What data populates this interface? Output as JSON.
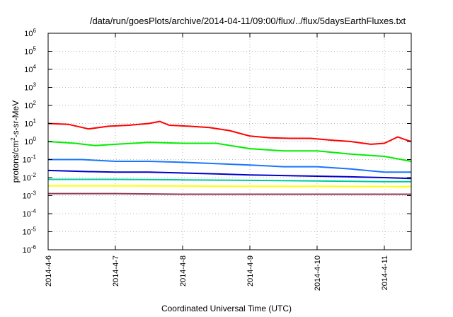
{
  "chart_data": {
    "type": "line",
    "title": "/data/run/goesPlots/archive/2014-04-11/09:00/flux/../flux/5daysEarthFluxes.txt",
    "xlabel": "Coordinated Universal Time (UTC)",
    "ylabel": {
      "prefix": "protons/cm",
      "sup": "2",
      "suffix": "-s-sr-MeV"
    },
    "yscale": "log",
    "ylim_exp": [
      -6,
      6
    ],
    "y_ticks": [
      {
        "exp": -6,
        "base": "10",
        "sup": "-6"
      },
      {
        "exp": -5,
        "base": "10",
        "sup": "-5"
      },
      {
        "exp": -4,
        "base": "10",
        "sup": "-4"
      },
      {
        "exp": -3,
        "base": "10",
        "sup": "-3"
      },
      {
        "exp": -2,
        "base": "10",
        "sup": "-2"
      },
      {
        "exp": -1,
        "base": "10",
        "sup": "-1"
      },
      {
        "exp": 0,
        "base": "10",
        "sup": "0"
      },
      {
        "exp": 1,
        "base": "10",
        "sup": "1"
      },
      {
        "exp": 2,
        "base": "10",
        "sup": "2"
      },
      {
        "exp": 3,
        "base": "10",
        "sup": "3"
      },
      {
        "exp": 4,
        "base": "10",
        "sup": "4"
      },
      {
        "exp": 5,
        "base": "10",
        "sup": "5"
      },
      {
        "exp": 6,
        "base": "10",
        "sup": "6"
      }
    ],
    "x_ticks": [
      "2014-4-6",
      "2014-4-7",
      "2014-4-8",
      "2014-4-9",
      "2014-4-10",
      "2014-4-11"
    ],
    "xlim_days": [
      0,
      5.4
    ],
    "grid": true,
    "series": [
      {
        "color": "#ff0000",
        "points": [
          [
            0,
            10
          ],
          [
            0.3,
            9
          ],
          [
            0.6,
            5
          ],
          [
            0.9,
            7
          ],
          [
            1.2,
            8
          ],
          [
            1.5,
            10
          ],
          [
            1.66,
            13
          ],
          [
            1.8,
            8
          ],
          [
            2.1,
            7
          ],
          [
            2.4,
            6
          ],
          [
            2.7,
            4
          ],
          [
            3.0,
            2
          ],
          [
            3.3,
            1.6
          ],
          [
            3.6,
            1.5
          ],
          [
            3.9,
            1.5
          ],
          [
            4.2,
            1.2
          ],
          [
            4.5,
            1.0
          ],
          [
            4.8,
            0.7
          ],
          [
            5.0,
            0.8
          ],
          [
            5.1,
            1.2
          ],
          [
            5.2,
            1.8
          ],
          [
            5.3,
            1.3
          ],
          [
            5.4,
            1.0
          ]
        ]
      },
      {
        "color": "#00ee00",
        "points": [
          [
            0,
            1.0
          ],
          [
            0.4,
            0.8
          ],
          [
            0.7,
            0.6
          ],
          [
            1.0,
            0.7
          ],
          [
            1.5,
            0.9
          ],
          [
            2.0,
            0.8
          ],
          [
            2.5,
            0.8
          ],
          [
            3.0,
            0.4
          ],
          [
            3.5,
            0.3
          ],
          [
            4.0,
            0.3
          ],
          [
            4.5,
            0.2
          ],
          [
            5.0,
            0.15
          ],
          [
            5.4,
            0.08
          ]
        ]
      },
      {
        "color": "#1a75ff",
        "points": [
          [
            0,
            0.1
          ],
          [
            0.5,
            0.1
          ],
          [
            1.0,
            0.08
          ],
          [
            1.5,
            0.08
          ],
          [
            2.0,
            0.07
          ],
          [
            2.5,
            0.06
          ],
          [
            3.0,
            0.05
          ],
          [
            3.5,
            0.04
          ],
          [
            4.0,
            0.04
          ],
          [
            4.5,
            0.03
          ],
          [
            5.0,
            0.02
          ],
          [
            5.4,
            0.02
          ]
        ]
      },
      {
        "color": "#0000cc",
        "points": [
          [
            0,
            0.025
          ],
          [
            0.5,
            0.022
          ],
          [
            1.0,
            0.02
          ],
          [
            1.5,
            0.02
          ],
          [
            2.0,
            0.018
          ],
          [
            2.5,
            0.016
          ],
          [
            3.0,
            0.014
          ],
          [
            3.5,
            0.013
          ],
          [
            4.0,
            0.012
          ],
          [
            4.5,
            0.011
          ],
          [
            5.0,
            0.01
          ],
          [
            5.4,
            0.009
          ]
        ]
      },
      {
        "color": "#00cc99",
        "points": [
          [
            0,
            0.008
          ],
          [
            1.0,
            0.008
          ],
          [
            2.0,
            0.0075
          ],
          [
            3.0,
            0.007
          ],
          [
            4.0,
            0.0065
          ],
          [
            5.0,
            0.006
          ],
          [
            5.4,
            0.006
          ]
        ]
      },
      {
        "color": "#ffff00",
        "points": [
          [
            0,
            0.0035
          ],
          [
            1.0,
            0.0035
          ],
          [
            2.0,
            0.0034
          ],
          [
            3.0,
            0.0033
          ],
          [
            4.0,
            0.0033
          ],
          [
            5.0,
            0.0032
          ],
          [
            5.4,
            0.0032
          ]
        ]
      },
      {
        "color": "#8e3a59",
        "points": [
          [
            0,
            0.0013
          ],
          [
            1.0,
            0.0013
          ],
          [
            2.0,
            0.0012
          ],
          [
            3.0,
            0.0012
          ],
          [
            4.0,
            0.0012
          ],
          [
            5.0,
            0.0012
          ],
          [
            5.4,
            0.0012
          ]
        ]
      }
    ]
  }
}
